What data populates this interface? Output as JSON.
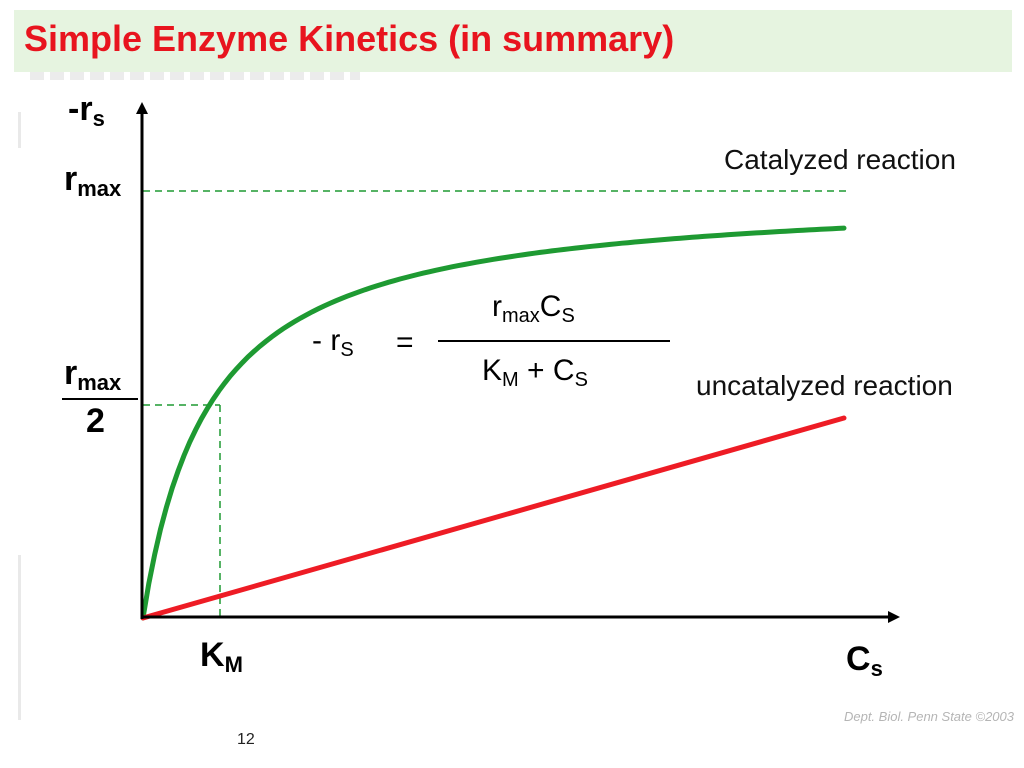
{
  "slide": {
    "title": "Simple Enzyme Kinetics (in summary)",
    "page_number": "12",
    "watermark": "Dept. Biol. Penn State ©2003"
  },
  "axes": {
    "y_symbol": {
      "main": "-r",
      "sub": "s"
    },
    "x_symbol": {
      "main": "C",
      "sub": "s"
    },
    "rmax_label": {
      "main": "r",
      "sub": "max"
    },
    "half_rmax_label": {
      "numer_main": "r",
      "numer_sub": "max",
      "denom": "2"
    },
    "km_label": {
      "main": "K",
      "sub": "M"
    }
  },
  "curves": {
    "catalyzed_label": "Catalyzed reaction",
    "uncatalyzed_label": "uncatalyzed reaction",
    "catalyzed_color": "#1e9a32",
    "uncatalyzed_color": "#ee1c25",
    "guide_color": "#1e9a32"
  },
  "equation": {
    "lhs_main": "- r",
    "lhs_sub": "S",
    "equals": "=",
    "num_r": "r",
    "num_r_sub": "max",
    "num_c": "C",
    "num_c_sub": "S",
    "den_k": "K",
    "den_k_sub": "M",
    "den_plus": "+",
    "den_c": "C",
    "den_c_sub": "S"
  },
  "chart_data": {
    "type": "line",
    "model": "michaelis-menten",
    "series": [
      {
        "name": "Catalyzed reaction",
        "relation": "rmax*Cs/(KM+Cs)",
        "rmax": 1.0,
        "KM": 1.0,
        "x": [
          0,
          10.5
        ]
      },
      {
        "name": "uncatalyzed reaction",
        "relation": "linear",
        "x": [
          0,
          10.5
        ],
        "y": [
          0,
          0.48
        ]
      }
    ],
    "reference_lines": [
      {
        "axis": "y",
        "value": 1.0,
        "label": "rmax",
        "style": "dashed"
      },
      {
        "axis": "y",
        "value": 0.5,
        "label": "rmax/2",
        "style": "dashed"
      },
      {
        "axis": "x",
        "value": 1.0,
        "label": "KM",
        "style": "dashed"
      }
    ],
    "xlabel": "Cs",
    "ylabel": "-rs",
    "grid": false
  }
}
